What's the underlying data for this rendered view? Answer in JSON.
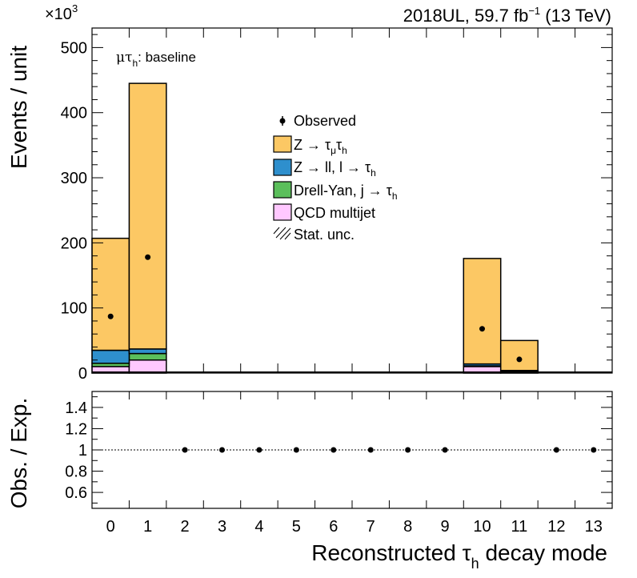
{
  "header": {
    "multiplier_prefix": "×10",
    "multiplier_exp": "3",
    "lumi_a": "2018UL, 59.7 fb",
    "lumi_exp": "−1",
    "lumi_b": " (13 TeV)"
  },
  "channel": {
    "mu": "μτ",
    "sub": "h",
    "rest": ": baseline"
  },
  "legend": {
    "observed": "Observed",
    "ztt_a": "Z → τ",
    "ztt_sub1": "μ",
    "ztt_b": "τ",
    "ztt_sub2": "h",
    "zll_a": "Z → ll, l → τ",
    "zll_sub": "h",
    "dy_a": "Drell-Yan, j  → τ",
    "dy_sub": "h",
    "qcd": "QCD multijet",
    "stat": "Stat. unc."
  },
  "axes": {
    "ylabel_top": "Events / unit",
    "ylabel_bottom": "Obs. / Exp.",
    "xlabel_a": "Reconstructed  τ",
    "xlabel_sub": "h",
    "xlabel_b": " decay mode"
  },
  "colors": {
    "ztt": "#fcc864",
    "zll": "#2e8fcd",
    "dy": "#5bbf5b",
    "qcd": "#ffc8ff",
    "data": "#000000"
  },
  "chart_data": {
    "type": "bar",
    "stacked": true,
    "categories": [
      "0",
      "1",
      "2",
      "3",
      "4",
      "5",
      "6",
      "7",
      "8",
      "9",
      "10",
      "11",
      "12",
      "13"
    ],
    "y_unit_multiplier": 1000,
    "ylim": [
      0,
      530
    ],
    "ratio_ylim": [
      0.45,
      1.55
    ],
    "ratio_ticks": [
      "0.6",
      "0.8",
      "1",
      "1.2",
      "1.4"
    ],
    "main_ticks": [
      "0",
      "100",
      "200",
      "300",
      "400",
      "500"
    ],
    "series": [
      {
        "name": "QCD multijet",
        "key": "qcd",
        "values": [
          10,
          20,
          0,
          0,
          0,
          0,
          0,
          0,
          0,
          0,
          10,
          2,
          0,
          0
        ]
      },
      {
        "name": "Drell-Yan, j → τh",
        "key": "dy",
        "values": [
          5,
          10,
          0,
          0,
          0,
          0,
          0,
          0,
          0,
          0,
          1,
          1,
          0,
          0
        ]
      },
      {
        "name": "Z → ll, l → τh",
        "key": "zll",
        "values": [
          20,
          7,
          0,
          0,
          0,
          0,
          0,
          0,
          0,
          0,
          3,
          1,
          0,
          0
        ]
      },
      {
        "name": "Z → τμτh",
        "key": "ztt",
        "values": [
          172,
          408,
          0,
          0,
          0,
          0,
          0,
          0,
          0,
          0,
          162,
          46,
          0,
          0
        ]
      }
    ],
    "observed": [
      87,
      178,
      0,
      0,
      0,
      0,
      0,
      0,
      0,
      0,
      68,
      21,
      0,
      0
    ],
    "ratio": [
      null,
      null,
      1,
      1,
      1,
      1,
      1,
      1,
      1,
      1,
      null,
      null,
      1,
      1
    ]
  }
}
